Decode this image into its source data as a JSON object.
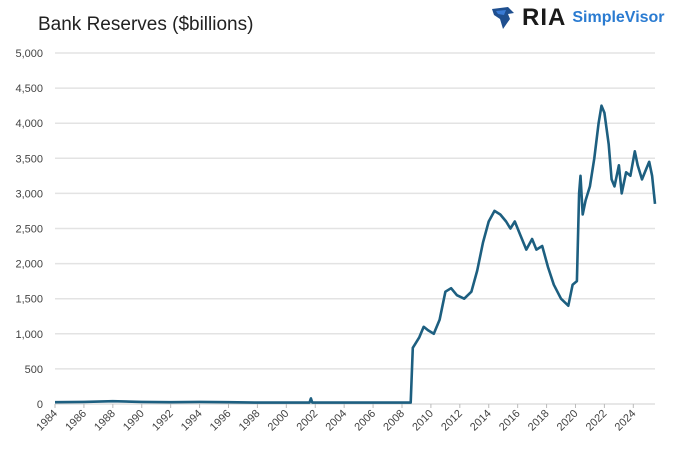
{
  "chart_data": {
    "type": "line",
    "title": "Bank Reserves ($billions)",
    "xlabel": "",
    "ylabel": "",
    "xlim": [
      1984,
      2025.5
    ],
    "ylim": [
      0,
      5000
    ],
    "grid": true,
    "y_ticks": [
      "0",
      "500",
      "1,000",
      "1,500",
      "2,000",
      "2,500",
      "3,000",
      "3,500",
      "4,000",
      "4,500",
      "5,000"
    ],
    "x_ticks": [
      "1984",
      "1986",
      "1988",
      "1990",
      "1992",
      "1994",
      "1996",
      "1998",
      "2000",
      "2002",
      "2004",
      "2006",
      "2008",
      "2010",
      "2012",
      "2014",
      "2016",
      "2018",
      "2020",
      "2022",
      "2024"
    ],
    "line_color": "#1d5f80",
    "series": [
      {
        "x": [
          1984,
          1986,
          1988,
          1990,
          1992,
          1994,
          1996,
          1998,
          2000,
          2001.6,
          2001.7,
          2001.8,
          2004,
          2008.6,
          2008.75,
          2008.9,
          2009.2,
          2009.5,
          2009.8,
          2010.2,
          2010.6,
          2011.0,
          2011.4,
          2011.8,
          2012.3,
          2012.8,
          2013.2,
          2013.6,
          2014.0,
          2014.4,
          2014.8,
          2015.2,
          2015.5,
          2015.8,
          2016.2,
          2016.6,
          2017.0,
          2017.3,
          2017.7,
          2018.1,
          2018.5,
          2019.0,
          2019.5,
          2019.8,
          2020.1,
          2020.25,
          2020.35,
          2020.5,
          2020.7,
          2021.0,
          2021.3,
          2021.6,
          2021.8,
          2022.0,
          2022.3,
          2022.5,
          2022.7,
          2023.0,
          2023.2,
          2023.5,
          2023.8,
          2024.1,
          2024.3,
          2024.6,
          2024.9,
          2025.1,
          2025.3,
          2025.5
        ],
        "y": [
          25,
          30,
          40,
          30,
          25,
          30,
          25,
          20,
          20,
          20,
          80,
          20,
          20,
          20,
          800,
          850,
          950,
          1100,
          1050,
          1000,
          1200,
          1600,
          1650,
          1550,
          1500,
          1600,
          1900,
          2300,
          2600,
          2750,
          2700,
          2600,
          2500,
          2600,
          2400,
          2200,
          2350,
          2200,
          2250,
          1950,
          1700,
          1500,
          1400,
          1700,
          1750,
          3000,
          3250,
          2700,
          2900,
          3100,
          3500,
          4000,
          4250,
          4150,
          3700,
          3200,
          3100,
          3400,
          3000,
          3300,
          3250,
          3600,
          3400,
          3200,
          3350,
          3450,
          3250,
          2850
        ]
      }
    ]
  },
  "logo": {
    "ria": "RIA",
    "simplevisor": "SimpleVisor"
  }
}
